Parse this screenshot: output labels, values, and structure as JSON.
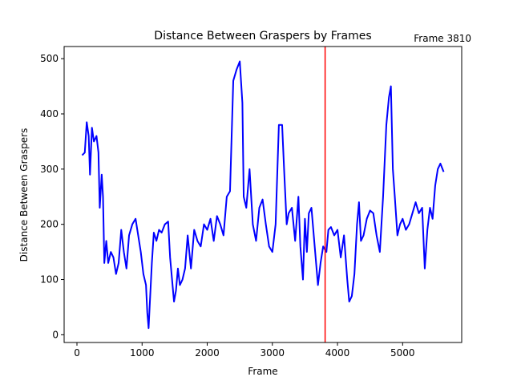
{
  "chart_data": {
    "type": "line",
    "title": "Distance Between Graspers by Frames",
    "annotation": "Frame 3810",
    "x_label": "Frame",
    "y_label": "Distance Between Graspers",
    "x": [
      80,
      120,
      150,
      180,
      200,
      230,
      260,
      300,
      330,
      350,
      380,
      400,
      420,
      450,
      480,
      520,
      560,
      600,
      640,
      680,
      720,
      760,
      800,
      850,
      900,
      940,
      980,
      1020,
      1060,
      1080,
      1100,
      1120,
      1150,
      1180,
      1220,
      1260,
      1300,
      1350,
      1400,
      1430,
      1460,
      1490,
      1520,
      1550,
      1580,
      1620,
      1660,
      1700,
      1750,
      1800,
      1850,
      1900,
      1950,
      2000,
      2050,
      2100,
      2150,
      2200,
      2250,
      2300,
      2350,
      2400,
      2450,
      2500,
      2540,
      2560,
      2600,
      2650,
      2700,
      2750,
      2800,
      2850,
      2900,
      2950,
      3000,
      3050,
      3100,
      3150,
      3180,
      3220,
      3250,
      3300,
      3350,
      3400,
      3430,
      3470,
      3500,
      3530,
      3560,
      3600,
      3650,
      3700,
      3740,
      3780,
      3830,
      3860,
      3900,
      3950,
      4000,
      4050,
      4100,
      4150,
      4180,
      4220,
      4260,
      4300,
      4330,
      4360,
      4400,
      4450,
      4500,
      4550,
      4600,
      4650,
      4700,
      4750,
      4790,
      4820,
      4850,
      4880,
      4920,
      4960,
      5000,
      5050,
      5100,
      5150,
      5200,
      5250,
      5300,
      5340,
      5380,
      5420,
      5460,
      5500,
      5540,
      5580,
      5630
    ],
    "series": [
      {
        "name": "Distance",
        "color": "#0000ff",
        "values": [
          325,
          330,
          385,
          360,
          290,
          375,
          350,
          360,
          330,
          230,
          290,
          250,
          130,
          170,
          130,
          150,
          140,
          110,
          130,
          190,
          150,
          120,
          180,
          200,
          210,
          180,
          150,
          110,
          90,
          40,
          12,
          60,
          130,
          185,
          170,
          190,
          185,
          200,
          205,
          140,
          100,
          60,
          80,
          120,
          90,
          100,
          120,
          180,
          120,
          190,
          170,
          160,
          200,
          190,
          210,
          170,
          215,
          200,
          180,
          250,
          260,
          460,
          480,
          495,
          420,
          250,
          230,
          300,
          200,
          170,
          230,
          245,
          200,
          160,
          150,
          200,
          380,
          380,
          300,
          200,
          220,
          230,
          170,
          250,
          160,
          100,
          210,
          150,
          220,
          230,
          160,
          90,
          130,
          160,
          150,
          190,
          195,
          180,
          190,
          140,
          180,
          100,
          60,
          70,
          110,
          200,
          240,
          170,
          180,
          210,
          225,
          220,
          180,
          150,
          250,
          380,
          430,
          450,
          300,
          250,
          180,
          200,
          210,
          190,
          200,
          220,
          240,
          220,
          230,
          120,
          190,
          230,
          210,
          270,
          300,
          310,
          295
        ]
      }
    ],
    "vline": {
      "x": 3810,
      "color": "#ff0000"
    },
    "xlim": [
      -197,
      5907
    ],
    "ylim": [
      -14,
      522
    ],
    "xticks": [
      0,
      1000,
      2000,
      3000,
      4000,
      5000
    ],
    "yticks": [
      0,
      100,
      200,
      300,
      400,
      500
    ]
  }
}
